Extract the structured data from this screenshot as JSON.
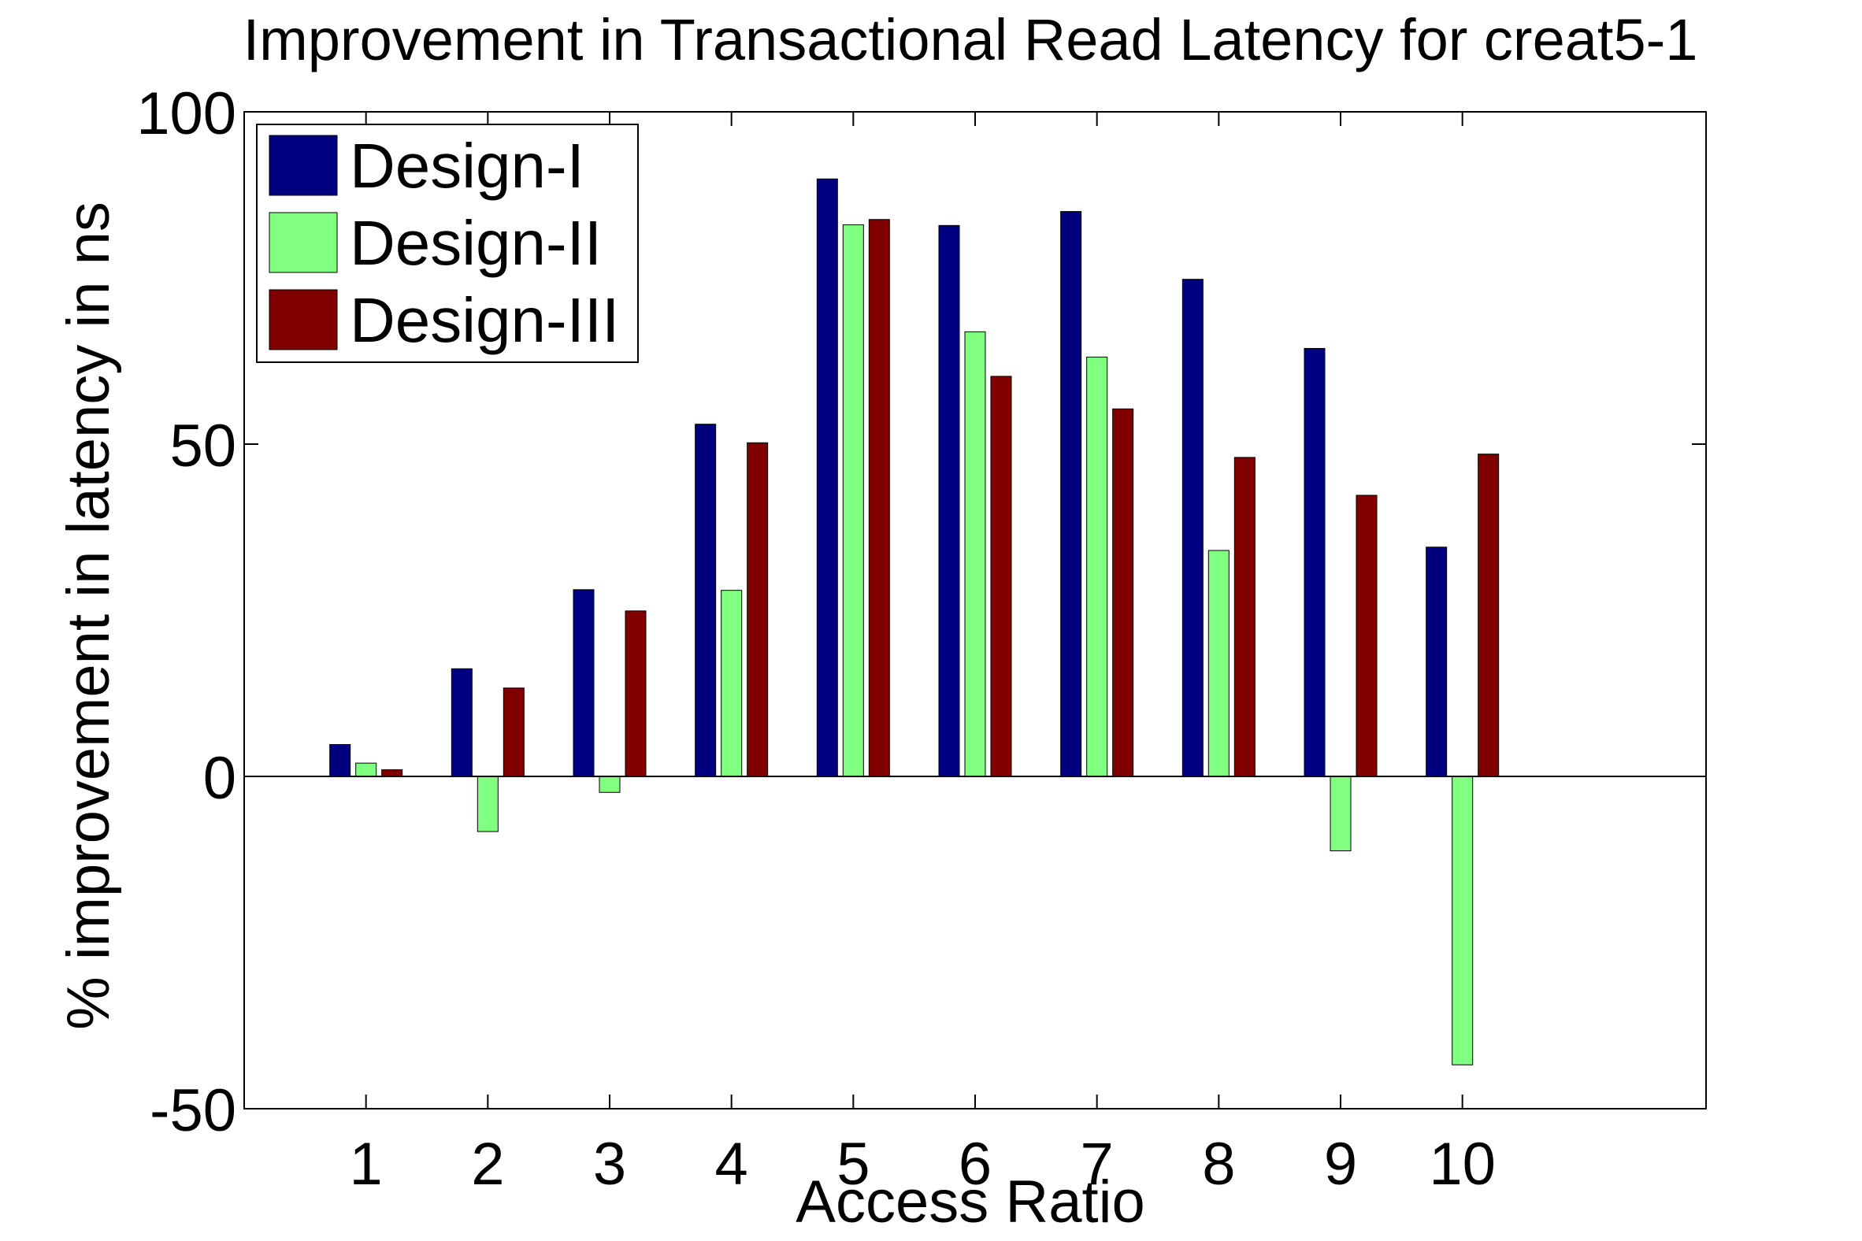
{
  "chart_data": {
    "type": "bar",
    "title": "Improvement in Transactional Read Latency for creat5-1",
    "xlabel": "Access Ratio",
    "ylabel": "% improvement in latency in ns",
    "categories": [
      "1",
      "2",
      "3",
      "4",
      "5",
      "6",
      "7",
      "8",
      "9",
      "10"
    ],
    "series": [
      {
        "name": "Design-I",
        "color": "#000080",
        "values": [
          4.8,
          16.2,
          28.1,
          53.0,
          89.9,
          82.9,
          85.0,
          74.8,
          64.4,
          34.5
        ]
      },
      {
        "name": "Design-II",
        "color": "#80ff80",
        "values": [
          2.0,
          -8.3,
          -2.4,
          28.0,
          83.0,
          66.9,
          63.1,
          34.0,
          -11.2,
          -43.4
        ]
      },
      {
        "name": "Design-III",
        "color": "#800000",
        "values": [
          1.0,
          13.3,
          24.9,
          50.2,
          83.8,
          60.2,
          55.3,
          48.0,
          42.3,
          48.5
        ]
      }
    ],
    "xlim": [
      0,
      12
    ],
    "ylim": [
      -50,
      100
    ],
    "yticks": [
      -50,
      0,
      50,
      100
    ],
    "grid": false,
    "legend_position": "top-left"
  }
}
